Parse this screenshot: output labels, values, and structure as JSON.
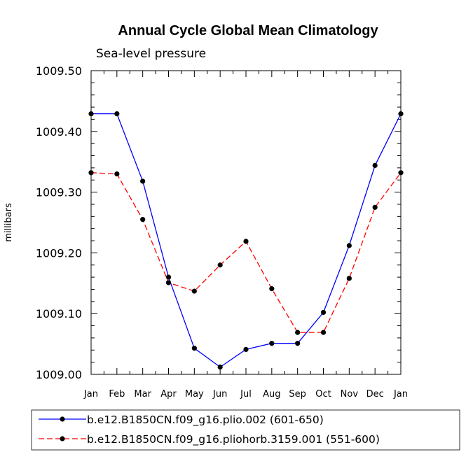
{
  "chart_data": {
    "type": "line",
    "title": "Annual Cycle Global Mean Climatology",
    "subtitle": "Sea-level pressure",
    "xlabel": "",
    "ylabel": "millibars",
    "ylim": [
      1009.0,
      1009.5
    ],
    "yticks": [
      "1009.00",
      "1009.10",
      "1009.20",
      "1009.30",
      "1009.40",
      "1009.50"
    ],
    "categories": [
      "Jan",
      "Feb",
      "Mar",
      "Apr",
      "May",
      "Jun",
      "Jul",
      "Aug",
      "Sep",
      "Oct",
      "Nov",
      "Dec",
      "Jan"
    ],
    "grid": false,
    "legend_position": "bottom",
    "series": [
      {
        "name": "b.e12.B1850CN.f09_g16.plio.002 (601-650)",
        "color": "#0000ff",
        "style": "solid",
        "values": [
          1009.429,
          1009.429,
          1009.318,
          1009.16,
          1009.043,
          1009.012,
          1009.041,
          1009.051,
          1009.051,
          1009.102,
          1009.212,
          1009.344,
          1009.429
        ]
      },
      {
        "name": "b.e12.B1850CN.f09_g16.pliohorb.3159.001 (551-600)",
        "color": "#ff0000",
        "style": "dashed",
        "values": [
          1009.332,
          1009.33,
          1009.255,
          1009.151,
          1009.137,
          1009.18,
          1009.219,
          1009.141,
          1009.069,
          1009.069,
          1009.158,
          1009.275,
          1009.332
        ]
      }
    ]
  }
}
